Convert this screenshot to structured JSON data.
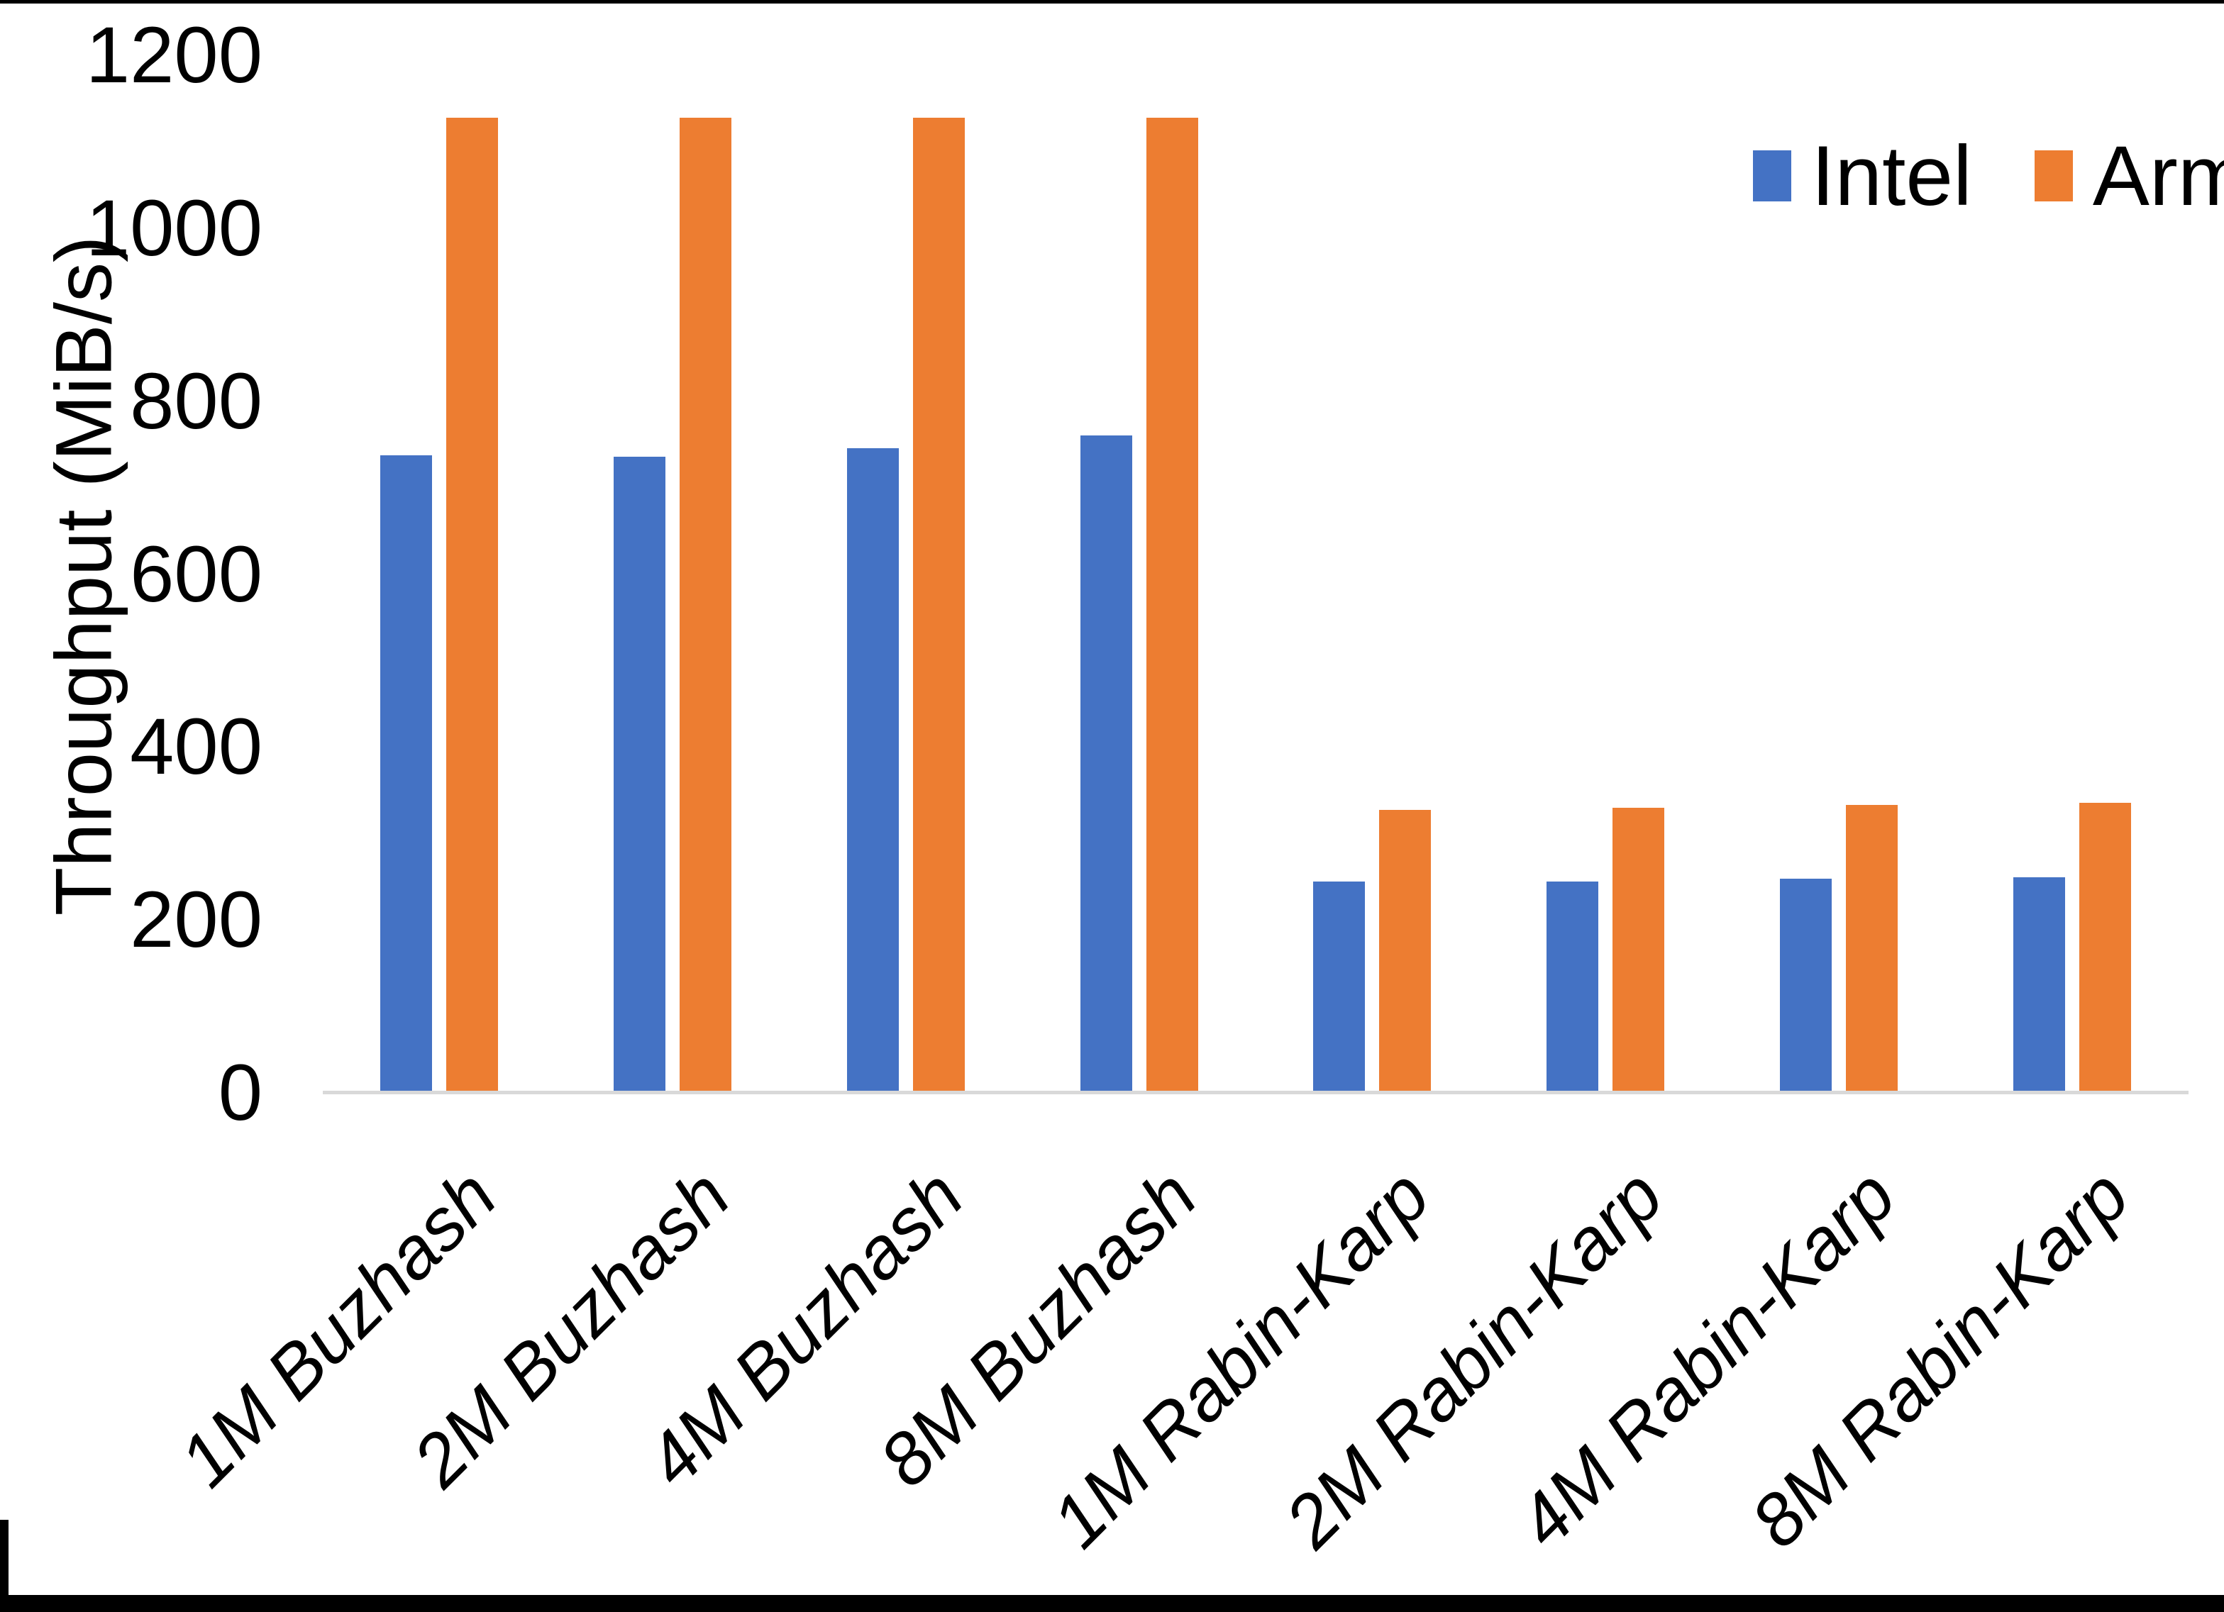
{
  "chart_data": {
    "type": "bar",
    "title": "",
    "xlabel": "",
    "ylabel": "Throughput (MiB/s)",
    "ylim": [
      0,
      1200
    ],
    "yticks": [
      0,
      200,
      400,
      600,
      800,
      1000,
      1200
    ],
    "grid": false,
    "legend_position": "top-right",
    "categories": [
      "1M Buzhash",
      "2M Buzhash",
      "4M Buzhash",
      "8M Buzhash",
      "1M Rabin-Karp",
      "2M Rabin-Karp",
      "4M Rabin-Karp",
      "8M Rabin-Karp"
    ],
    "series": [
      {
        "name": "Intel",
        "color": "#4472C4",
        "values": [
          736,
          734,
          744,
          759,
          243,
          243,
          246,
          248
        ]
      },
      {
        "name": "Arm",
        "color": "#ED7D31",
        "values": [
          1126,
          1126,
          1126,
          1126,
          326,
          328,
          331,
          334
        ]
      }
    ],
    "axis_line_color": "#D9D9D9"
  }
}
